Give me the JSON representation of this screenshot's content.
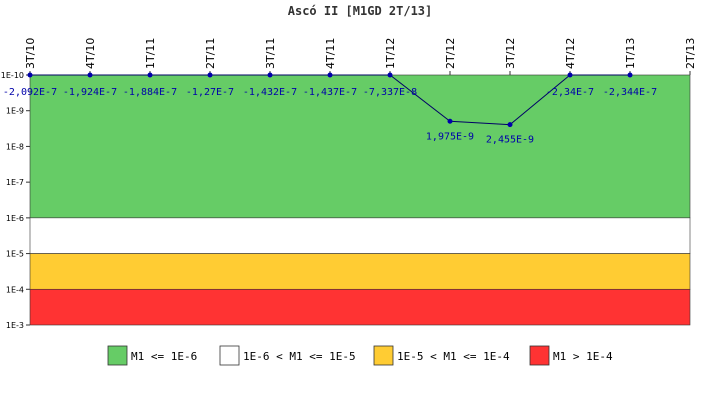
{
  "chart_data": {
    "type": "line",
    "title": "Ascó II [M1GD 2T/13]",
    "y_scale": "log",
    "y_inverted": true,
    "ylim": [
      "1E-10",
      "1E-3"
    ],
    "y_ticks": [
      "1E-10",
      "1E-9",
      "1E-8",
      "1E-7",
      "1E-6",
      "1E-5",
      "1E-4",
      "1E-3"
    ],
    "x": [
      "3T/10",
      "4T/10",
      "1T/11",
      "2T/11",
      "3T/11",
      "4T/11",
      "1T/12",
      "2T/12",
      "3T/12",
      "4T/12",
      "1T/13",
      "2T/13"
    ],
    "series": [
      {
        "color": "#000066",
        "marker_color": "#0000aa",
        "values": [
          -2.092e-07,
          -1.924e-07,
          -1.884e-07,
          -1.27e-07,
          -1.432e-07,
          -1.437e-07,
          -7.337e-08,
          1.975e-09,
          2.455e-09,
          -2.34e-07,
          -2.344e-07,
          null
        ],
        "labels": [
          "-2,092E-7",
          "-1,924E-7",
          "-1,884E-7",
          "-1,27E-7",
          "-1,432E-7",
          "-1,437E-7",
          "-7,337E-8",
          "1,975E-9",
          "2,455E-9",
          "-2,34E-7",
          "-2,344E-7",
          ""
        ]
      }
    ],
    "bands": [
      {
        "from_exp": -10,
        "to_exp": -6,
        "color": "#66cc66",
        "label": "M1 <= 1E-6"
      },
      {
        "from_exp": -6,
        "to_exp": -5,
        "color": "#ffffff",
        "label": "1E-6 < M1 <= 1E-5"
      },
      {
        "from_exp": -5,
        "to_exp": -4,
        "color": "#ffcc33",
        "label": "1E-5 < M1 <= 1E-4"
      },
      {
        "from_exp": -4,
        "to_exp": -3,
        "color": "#ff3333",
        "label": "M1 > 1E-4"
      }
    ],
    "legend_position": "bottom"
  }
}
